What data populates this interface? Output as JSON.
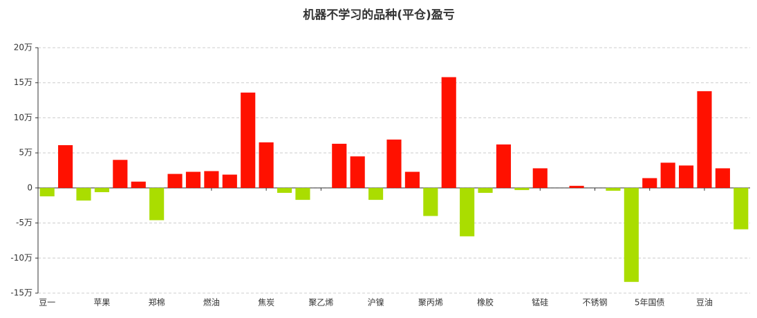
{
  "chart_data": {
    "type": "bar",
    "title": "机器不学习的品种(平仓)盈亏",
    "categories": [
      "豆一",
      null,
      null,
      "苹果",
      null,
      null,
      "郑棉",
      null,
      null,
      "燃油",
      null,
      null,
      "焦炭",
      null,
      null,
      "聚乙烯",
      null,
      null,
      "沪镍",
      null,
      null,
      "聚丙烯",
      null,
      null,
      "橡胶",
      null,
      null,
      "锰硅",
      null,
      null,
      "不锈钢",
      null,
      null,
      "5年国债",
      null,
      null,
      "豆油",
      null,
      null
    ],
    "values": [
      -1.2,
      6.1,
      -1.8,
      -0.6,
      4.0,
      0.9,
      -4.6,
      2.0,
      2.3,
      2.4,
      1.9,
      13.6,
      6.5,
      -0.7,
      -1.7,
      0,
      6.3,
      4.5,
      -1.7,
      6.9,
      2.3,
      -4.0,
      15.8,
      -6.9,
      -0.7,
      6.2,
      -0.3,
      2.8,
      0,
      0.3,
      0,
      -0.4,
      -13.4,
      1.4,
      3.6,
      3.2,
      13.8,
      2.8,
      -5.9
    ],
    "positive_color": "#ff1100",
    "negative_color": "#aadd00",
    "ylim": [
      -15,
      20
    ],
    "yticks": [
      {
        "value": -15,
        "label": "-15万"
      },
      {
        "value": -10,
        "label": "-10万"
      },
      {
        "value": -5,
        "label": "-5万"
      },
      {
        "value": 0,
        "label": "0"
      },
      {
        "value": 5,
        "label": "5万"
      },
      {
        "value": 10,
        "label": "10万"
      },
      {
        "value": 15,
        "label": "15万"
      },
      {
        "value": 20,
        "label": "20万"
      }
    ],
    "grid": true
  }
}
